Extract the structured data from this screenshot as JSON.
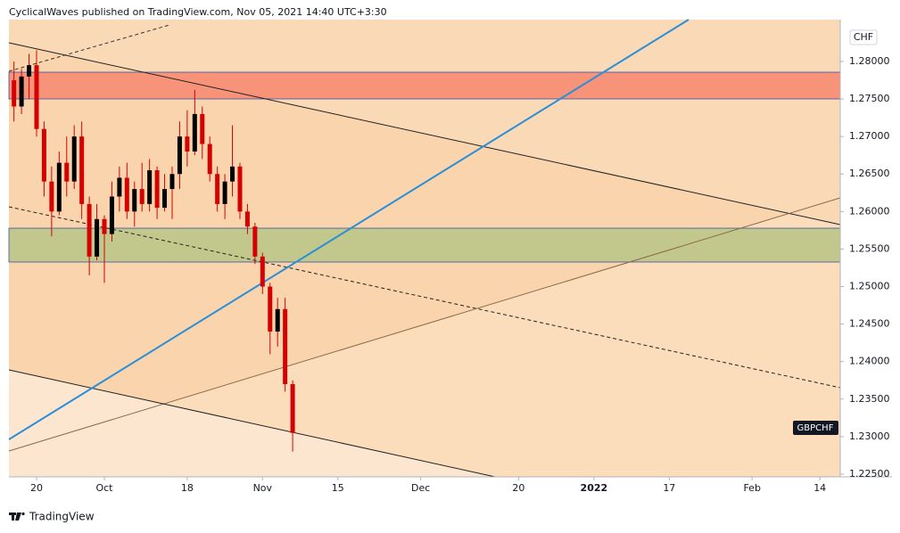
{
  "header": "CyclicalWaves published on TradingView.com, Nov 05, 2021 14:40 UTC+3:30",
  "footer": "TradingView",
  "chart_data": {
    "type": "candlestick",
    "symbol": "GBPCHF",
    "currency": "CHF",
    "up_color": "#000000",
    "down_color": "#d50000",
    "x": [
      -3,
      -2,
      -1,
      0,
      1,
      2,
      3,
      4,
      5,
      6,
      7,
      8,
      9,
      10,
      11,
      12,
      13,
      14,
      15,
      16,
      17,
      18,
      19,
      20,
      21,
      22,
      23,
      24,
      25,
      26,
      27,
      28,
      29,
      30,
      31,
      32,
      33,
      34
    ],
    "open": [
      1.2775,
      1.274,
      1.278,
      1.2795,
      1.271,
      1.264,
      1.26,
      1.2665,
      1.264,
      1.27,
      1.261,
      1.254,
      1.259,
      1.257,
      1.262,
      1.2645,
      1.26,
      1.263,
      1.261,
      1.2655,
      1.2605,
      1.263,
      1.265,
      1.27,
      1.268,
      1.273,
      1.269,
      1.265,
      1.261,
      1.264,
      1.266,
      1.26,
      1.258,
      1.254,
      1.25,
      1.244,
      1.247,
      1.237
    ],
    "high": [
      1.28,
      1.279,
      1.281,
      1.2815,
      1.272,
      1.266,
      1.268,
      1.27,
      1.2715,
      1.272,
      1.262,
      1.261,
      1.2595,
      1.264,
      1.266,
      1.2665,
      1.264,
      1.2665,
      1.267,
      1.266,
      1.265,
      1.266,
      1.272,
      1.2735,
      1.2762,
      1.274,
      1.27,
      1.266,
      1.265,
      1.2715,
      1.2665,
      1.261,
      1.2585,
      1.2545,
      1.2505,
      1.2485,
      1.2485,
      1.2375
    ],
    "low": [
      1.272,
      1.273,
      1.275,
      1.27,
      1.262,
      1.2567,
      1.2595,
      1.262,
      1.263,
      1.259,
      1.2515,
      1.2535,
      1.2505,
      1.256,
      1.26,
      1.259,
      1.258,
      1.26,
      1.26,
      1.259,
      1.26,
      1.259,
      1.263,
      1.266,
      1.2675,
      1.267,
      1.264,
      1.26,
      1.259,
      1.262,
      1.259,
      1.257,
      1.253,
      1.249,
      1.241,
      1.242,
      1.236,
      1.228
    ],
    "close": [
      1.274,
      1.278,
      1.2795,
      1.271,
      1.264,
      1.26,
      1.2665,
      1.264,
      1.27,
      1.261,
      1.254,
      1.259,
      1.257,
      1.262,
      1.2645,
      1.26,
      1.263,
      1.261,
      1.2655,
      1.2605,
      1.263,
      1.265,
      1.27,
      1.268,
      1.273,
      1.269,
      1.265,
      1.261,
      1.264,
      1.266,
      1.26,
      1.258,
      1.254,
      1.25,
      1.244,
      1.247,
      1.237,
      1.2305
    ],
    "zones": [
      {
        "low": 1.27501,
        "high": 1.27857,
        "color": "#f79378"
      },
      {
        "low": 1.25327,
        "high": 1.25778,
        "color": "#c2c88c"
      }
    ],
    "xlim": [
      -3.67,
      106.7
    ],
    "xticks": [
      {
        "value": 0,
        "label": "20"
      },
      {
        "value": 9,
        "label": "Oct"
      },
      {
        "value": 20,
        "label": "18"
      },
      {
        "value": 30,
        "label": "Nov"
      },
      {
        "value": 40,
        "label": "15"
      },
      {
        "value": 51,
        "label": "Dec"
      },
      {
        "value": 64,
        "label": "20"
      },
      {
        "value": 74,
        "label": "2022"
      },
      {
        "value": 84,
        "label": "17"
      },
      {
        "value": 95,
        "label": "Feb"
      },
      {
        "value": 104,
        "label": "14"
      }
    ],
    "ylim": [
      1.22464,
      1.28558
    ],
    "yticks": [
      {
        "value": 1.225,
        "label": "1.22500"
      },
      {
        "value": 1.23,
        "label": "1.23000"
      },
      {
        "value": 1.235,
        "label": "1.23500"
      },
      {
        "value": 1.24,
        "label": "1.24000"
      },
      {
        "value": 1.245,
        "label": "1.24500"
      },
      {
        "value": 1.25,
        "label": "1.25000"
      },
      {
        "value": 1.255,
        "label": "1.25500"
      },
      {
        "value": 1.26,
        "label": "1.26000"
      },
      {
        "value": 1.265,
        "label": "1.26500"
      },
      {
        "value": 1.27,
        "label": "1.27000"
      },
      {
        "value": 1.275,
        "label": "1.27500"
      },
      {
        "value": 1.28,
        "label": "1.28000"
      }
    ]
  }
}
